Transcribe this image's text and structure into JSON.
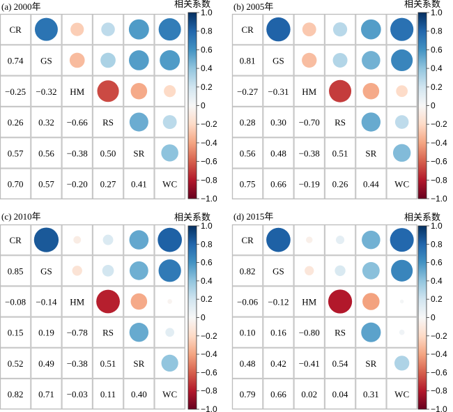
{
  "figure": {
    "colorbar_title": "相关系数",
    "colorbar_ticks": [
      "1.0",
      "0.8",
      "0.6",
      "0.4",
      "0.2",
      "0",
      "−0.2",
      "−0.4",
      "−0.6",
      "−0.8",
      "−1.0"
    ],
    "colorbar_range": [
      -1,
      1
    ],
    "colormap": [
      "#67001f",
      "#b2182b",
      "#d6604d",
      "#f4a582",
      "#fddbc7",
      "#f7f7f7",
      "#d1e5f0",
      "#92c5de",
      "#4393c3",
      "#2166ac",
      "#053061"
    ]
  },
  "chart_data": [
    {
      "type": "heatmap",
      "title": "(a) 2000年",
      "variables": [
        "CR",
        "GS",
        "HM",
        "RS",
        "SR",
        "WC"
      ],
      "lower_labels": [
        [
          "0.74"
        ],
        [
          "−0.25",
          "−0.32"
        ],
        [
          "0.26",
          "0.32",
          "−0.66"
        ],
        [
          "0.57",
          "0.56",
          "−0.38",
          "0.50"
        ],
        [
          "0.70",
          "0.57",
          "−0.20",
          "0.27",
          "0.41"
        ]
      ],
      "matrix": [
        [
          1,
          0.74,
          -0.25,
          0.26,
          0.57,
          0.7
        ],
        [
          0.74,
          1,
          -0.32,
          0.32,
          0.56,
          0.57
        ],
        [
          -0.25,
          -0.32,
          1,
          -0.66,
          -0.38,
          -0.2
        ],
        [
          0.26,
          0.32,
          -0.66,
          1,
          0.5,
          0.27
        ],
        [
          0.57,
          0.56,
          -0.38,
          0.5,
          1,
          0.41
        ],
        [
          0.7,
          0.57,
          -0.2,
          0.27,
          0.41,
          1
        ]
      ]
    },
    {
      "type": "heatmap",
      "title": "(b) 2005年",
      "variables": [
        "CR",
        "GS",
        "HM",
        "RS",
        "SR",
        "WC"
      ],
      "lower_labels": [
        [
          "0.81"
        ],
        [
          "−0.27",
          "−0.31"
        ],
        [
          "0.28",
          "0.30",
          "−0.70"
        ],
        [
          "0.56",
          "0.48",
          "−0.38",
          "0.51"
        ],
        [
          "0.75",
          "0.66",
          "−0.19",
          "0.26",
          "0.44"
        ]
      ],
      "matrix": [
        [
          1,
          0.81,
          -0.27,
          0.28,
          0.56,
          0.75
        ],
        [
          0.81,
          1,
          -0.31,
          0.3,
          0.48,
          0.66
        ],
        [
          -0.27,
          -0.31,
          1,
          -0.7,
          -0.38,
          -0.19
        ],
        [
          0.28,
          0.3,
          -0.7,
          1,
          0.51,
          0.26
        ],
        [
          0.56,
          0.48,
          -0.38,
          0.51,
          1,
          0.44
        ],
        [
          0.75,
          0.66,
          -0.19,
          0.26,
          0.44,
          1
        ]
      ]
    },
    {
      "type": "heatmap",
      "title": "(c) 2010年",
      "variables": [
        "CR",
        "GS",
        "HM",
        "RS",
        "SR",
        "WC"
      ],
      "lower_labels": [
        [
          "0.85"
        ],
        [
          "−0.08",
          "−0.14"
        ],
        [
          "0.15",
          "0.19",
          "−0.78"
        ],
        [
          "0.52",
          "0.49",
          "−0.38",
          "0.51"
        ],
        [
          "0.82",
          "0.71",
          "−0.03",
          "0.11",
          "0.40"
        ]
      ],
      "matrix": [
        [
          1,
          0.85,
          -0.08,
          0.15,
          0.52,
          0.82
        ],
        [
          0.85,
          1,
          -0.14,
          0.19,
          0.49,
          0.71
        ],
        [
          -0.08,
          -0.14,
          1,
          -0.78,
          -0.38,
          -0.03
        ],
        [
          0.15,
          0.19,
          -0.78,
          1,
          0.51,
          0.11
        ],
        [
          0.52,
          0.49,
          -0.38,
          0.51,
          1,
          0.4
        ],
        [
          0.82,
          0.71,
          -0.03,
          0.11,
          0.4,
          1
        ]
      ]
    },
    {
      "type": "heatmap",
      "title": "(d) 2015年",
      "variables": [
        "CR",
        "GS",
        "HM",
        "RS",
        "SR",
        "WC"
      ],
      "lower_labels": [
        [
          "0.82"
        ],
        [
          "−0.06",
          "−0.12"
        ],
        [
          "0.10",
          "0.16",
          "−0.80"
        ],
        [
          "0.48",
          "0.42",
          "−0.41",
          "0.54"
        ],
        [
          "0.79",
          "0.66",
          "0.02",
          "0.04",
          "0.31"
        ]
      ],
      "matrix": [
        [
          1,
          0.82,
          -0.06,
          0.1,
          0.48,
          0.79
        ],
        [
          0.82,
          1,
          -0.12,
          0.16,
          0.42,
          0.66
        ],
        [
          -0.06,
          -0.12,
          1,
          -0.8,
          -0.41,
          0.02
        ],
        [
          0.1,
          0.16,
          -0.8,
          1,
          0.54,
          0.04
        ],
        [
          0.48,
          0.42,
          -0.41,
          0.54,
          1,
          0.31
        ],
        [
          0.79,
          0.66,
          0.02,
          0.04,
          0.31,
          1
        ]
      ]
    }
  ]
}
